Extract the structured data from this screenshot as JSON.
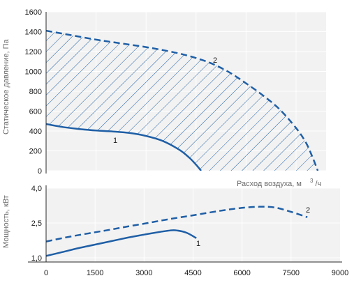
{
  "colors": {
    "curve": "#1f5fa6",
    "background": "#f2f2f2",
    "axis": "#2a2a2a"
  },
  "chart_data": [
    {
      "type": "line",
      "title": "",
      "ylabel": "Статическое давление, Па",
      "xlabel": "Расход воздуха, м",
      "xlabel_sup": "3",
      "xlabel_unit": "/ч",
      "xlim": [
        0,
        9000
      ],
      "ylim": [
        0,
        1600
      ],
      "yticks": [
        "1600",
        "1400",
        "1200",
        "1000",
        "800",
        "600",
        "400",
        "200",
        "0"
      ],
      "hatched_region": "between curve 1 and curve 2",
      "grid": true,
      "series": [
        {
          "name": "1",
          "style": "solid",
          "x": [
            0,
            500,
            1000,
            1500,
            2000,
            2500,
            3000,
            3500,
            4000,
            4300,
            4500,
            4650
          ],
          "y": [
            470,
            440,
            420,
            405,
            395,
            380,
            350,
            300,
            210,
            130,
            60,
            0
          ]
        },
        {
          "name": "2",
          "style": "dashed",
          "x": [
            0,
            500,
            1000,
            1500,
            2000,
            2500,
            3000,
            3500,
            4000,
            4500,
            5000,
            5500,
            6000,
            6500,
            7000,
            7500,
            7800,
            8000,
            8150
          ],
          "y": [
            1410,
            1380,
            1350,
            1320,
            1295,
            1270,
            1245,
            1215,
            1180,
            1135,
            1075,
            990,
            880,
            760,
            620,
            430,
            280,
            130,
            0
          ]
        }
      ]
    },
    {
      "type": "line",
      "title": "",
      "ylabel": "Мощность, кВт",
      "xlabel": "",
      "xlim": [
        0,
        9000
      ],
      "ylim": [
        1.0,
        4.0
      ],
      "yticks": [
        "4,0",
        "2,5",
        "1,0"
      ],
      "xticks": [
        "0",
        "1500",
        "3000",
        "4500",
        "6000",
        "7500",
        "9000"
      ],
      "grid": true,
      "series": [
        {
          "name": "1",
          "style": "solid",
          "x": [
            0,
            500,
            1000,
            1500,
            2000,
            2500,
            3000,
            3500,
            3800,
            4000,
            4300,
            4600
          ],
          "y": [
            1.08,
            1.25,
            1.42,
            1.57,
            1.72,
            1.87,
            2.0,
            2.12,
            2.18,
            2.18,
            2.08,
            1.85
          ]
        },
        {
          "name": "2",
          "style": "dashed",
          "x": [
            0,
            500,
            1000,
            1500,
            2000,
            2500,
            3000,
            3500,
            4000,
            4500,
            5000,
            5500,
            6000,
            6500,
            7000,
            7500,
            8000
          ],
          "y": [
            1.7,
            1.85,
            1.98,
            2.1,
            2.22,
            2.35,
            2.47,
            2.6,
            2.72,
            2.83,
            2.95,
            3.06,
            3.15,
            3.2,
            3.17,
            2.98,
            2.75
          ]
        }
      ]
    }
  ]
}
